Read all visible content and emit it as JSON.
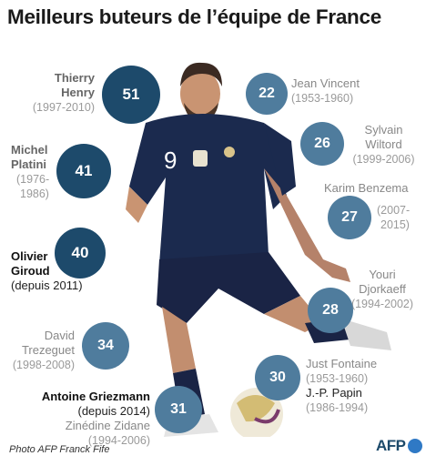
{
  "title": "Meilleurs buteurs de l’équipe de France",
  "players": [
    {
      "key": "henry",
      "line1": "Thierry",
      "line2": "Henry",
      "years": "(1997-2010)",
      "goals": "51"
    },
    {
      "key": "platini",
      "line1": "Michel",
      "line2": "Platini",
      "years1": "(1976-",
      "years2": "1986)",
      "goals": "41"
    },
    {
      "key": "giroud",
      "line1": "Olivier",
      "line2": "Giroud",
      "years": "(depuis 2011)",
      "goals": "40"
    },
    {
      "key": "trezeguet",
      "line1": "David",
      "line2": "Trezeguet",
      "years": "(1998-2008)",
      "goals": "34"
    },
    {
      "key": "griezmann",
      "line1": "Antoine Griezmann",
      "years": "(depuis 2014)",
      "goals": "31"
    },
    {
      "key": "zidane",
      "line1": "Zinédine Zidane",
      "years": "(1994-2006)",
      "goals": "31"
    },
    {
      "key": "vincent",
      "line1": "Jean Vincent",
      "years": "(1953-1960)",
      "goals": "22"
    },
    {
      "key": "wiltord",
      "line1": "Sylvain",
      "line2": "Wiltord",
      "years": "(1999-2006)",
      "goals": "26"
    },
    {
      "key": "benzema",
      "line1": "Karim Benzema",
      "years1": "(2007-",
      "years2": "2015)",
      "goals": "27"
    },
    {
      "key": "djorkaeff",
      "line1": "Youri",
      "line2": "Djorkaeff",
      "years": "(1994-2002)",
      "goals": "28"
    },
    {
      "key": "fontaine",
      "line1": "Just Fontaine",
      "years": "(1953-1960)",
      "goals": "30"
    },
    {
      "key": "papin",
      "line1": "J.-P. Papin",
      "years": "(1986-1994)",
      "goals": "30"
    }
  ],
  "shirt_number": "9",
  "credit": "Photo AFP Franck Fife",
  "logo_text": "AFP",
  "colors": {
    "dark_bubble": "#1d4a6b",
    "light_bubble": "#4f7c9d",
    "shirt": "#1b2a4e"
  }
}
